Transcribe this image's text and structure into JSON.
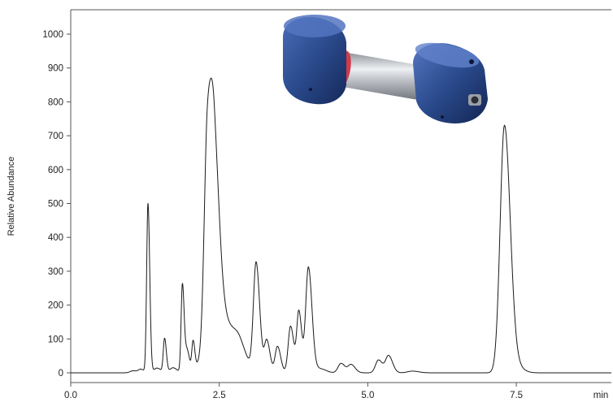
{
  "chart_data": {
    "type": "line",
    "ylabel": "Relative Abundance",
    "xunit": "min",
    "xlim": [
      0,
      9.1
    ],
    "ylim": [
      0,
      1000
    ],
    "xticks": [
      0.0,
      2.5,
      5.0,
      7.5
    ],
    "xtick_labels": [
      "0.0",
      "2.5",
      "5.0",
      "7.5"
    ],
    "yticks": [
      0,
      100,
      200,
      300,
      400,
      500,
      600,
      700,
      800,
      900,
      1000
    ],
    "ytick_labels": [
      "0",
      "100",
      "200",
      "300",
      "400",
      "500",
      "600",
      "700",
      "800",
      "900",
      "1000"
    ],
    "grid": false,
    "legend": "none",
    "series": [
      {
        "baseline": 0,
        "peaks": [
          {
            "rt": 1.05,
            "height": 6,
            "width": 0.05
          },
          {
            "rt": 1.18,
            "height": 10,
            "width": 0.04
          },
          {
            "rt": 1.3,
            "height": 500,
            "width": 0.022
          },
          {
            "rt": 1.45,
            "height": 14,
            "width": 0.05
          },
          {
            "rt": 1.58,
            "height": 100,
            "width": 0.022
          },
          {
            "rt": 1.72,
            "height": 15,
            "width": 0.05
          },
          {
            "rt": 1.88,
            "height": 262,
            "width": 0.022
          },
          {
            "rt": 1.96,
            "height": 65,
            "width": 0.03
          },
          {
            "rt": 2.06,
            "height": 90,
            "width": 0.022
          },
          {
            "rt": 2.16,
            "height": 25,
            "width": 0.05
          },
          {
            "rt": 2.3,
            "height": 680,
            "width": 0.055
          },
          {
            "rt": 2.42,
            "height": 560,
            "width": 0.065
          },
          {
            "rt": 2.62,
            "height": 140,
            "width": 0.12
          },
          {
            "rt": 2.85,
            "height": 55,
            "width": 0.09
          },
          {
            "rt": 3.12,
            "height": 322,
            "width": 0.045
          },
          {
            "rt": 3.3,
            "height": 95,
            "width": 0.04
          },
          {
            "rt": 3.48,
            "height": 78,
            "width": 0.04
          },
          {
            "rt": 3.7,
            "height": 138,
            "width": 0.04
          },
          {
            "rt": 3.84,
            "height": 180,
            "width": 0.035
          },
          {
            "rt": 4.0,
            "height": 312,
            "width": 0.045
          },
          {
            "rt": 4.2,
            "height": 12,
            "width": 0.07
          },
          {
            "rt": 4.55,
            "height": 28,
            "width": 0.05
          },
          {
            "rt": 4.72,
            "height": 24,
            "width": 0.05
          },
          {
            "rt": 5.18,
            "height": 38,
            "width": 0.05
          },
          {
            "rt": 5.35,
            "height": 50,
            "width": 0.05
          },
          {
            "rt": 5.75,
            "height": 5,
            "width": 0.08
          },
          {
            "rt": 7.3,
            "height": 728,
            "width": 0.072
          },
          {
            "rt": 7.48,
            "height": 20,
            "width": 0.09
          }
        ]
      }
    ]
  },
  "photo": {
    "icon": "hplc-column-photo",
    "colors": {
      "cap": "#2a4a8c",
      "cap_dark": "#16295a",
      "cap_light": "#4b6cb8",
      "tube": "#b9bcc2",
      "ring": "#d23a4a"
    }
  }
}
